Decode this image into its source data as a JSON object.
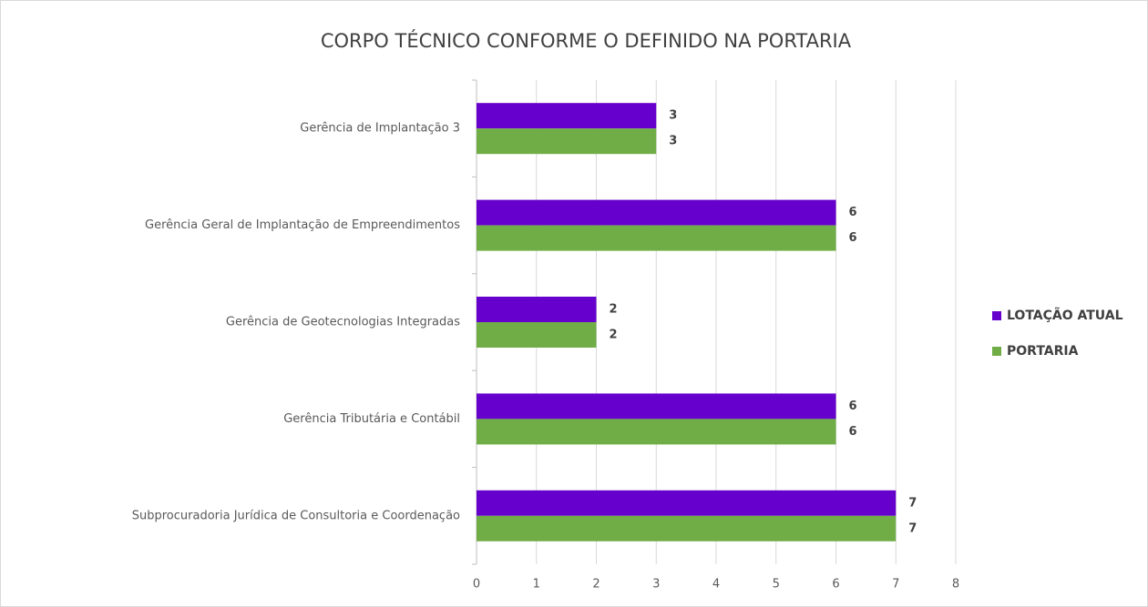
{
  "chart_data": {
    "type": "bar",
    "orientation": "horizontal",
    "title": "CORPO TÉCNICO CONFORME O DEFINIDO NA PORTARIA",
    "categories": [
      "Gerência de Implantação 3",
      "Gerência Geral de Implantação de Empreendimentos",
      "Gerência de Geotecnologias Integradas",
      "Gerência Tributária e Contábil",
      "Subprocuradoria Jurídica de Consultoria e Coordenação"
    ],
    "series": [
      {
        "name": "LOTAÇÃO ATUAL",
        "color": "#6600cc",
        "values": [
          3,
          6,
          2,
          6,
          7
        ]
      },
      {
        "name": "PORTARIA",
        "color": "#70ad47",
        "values": [
          3,
          6,
          2,
          6,
          7
        ]
      }
    ],
    "xlim": [
      0,
      8
    ],
    "xticks": [
      0,
      1,
      2,
      3,
      4,
      5,
      6,
      7,
      8
    ],
    "grid": true,
    "legend": "right"
  }
}
